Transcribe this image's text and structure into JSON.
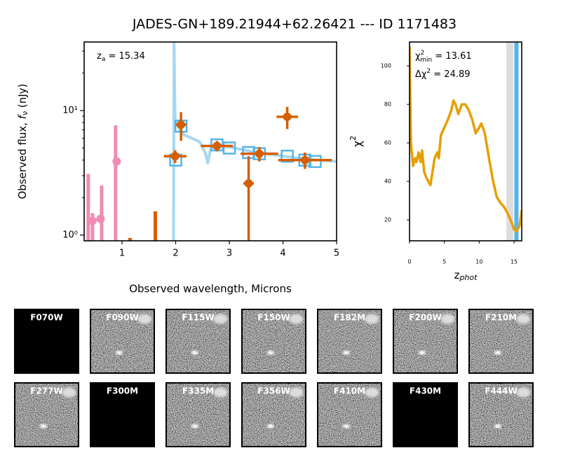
{
  "title": "JADES-GN+189.21944+62.26421 --- ID 1171483",
  "chart_data": [
    {
      "type": "sed",
      "annotation": [
        "z",
        "a",
        " = 15.34"
      ],
      "xlabel": "Observed wavelength, Microns",
      "ylabel": [
        "Observed flux, ",
        "f",
        "ν",
        " (nJy)"
      ],
      "xlim": [
        0.294,
        5
      ],
      "xticks": [
        1,
        2,
        3,
        4,
        5
      ],
      "ylim": [
        0.9,
        35.5
      ],
      "log_y": true,
      "yticks": [
        {
          "value": 1,
          "label": "10⁰"
        },
        {
          "value": 10,
          "label": "10¹"
        }
      ],
      "yminor_ticks": [
        2,
        3,
        4,
        5,
        6,
        7,
        8,
        9,
        20,
        30
      ],
      "series": [
        {
          "kind": "line",
          "color": "#a6d8f0",
          "x": [
            1.96,
            1.97,
            1.99,
            2.05,
            2.15,
            2.3,
            2.45,
            2.55,
            2.6,
            2.65,
            2.75,
            2.9,
            3.1,
            3.4,
            3.7,
            4.0,
            4.4,
            5.0
          ],
          "values": [
            0.9,
            35.5,
            8.2,
            7.4,
            6.4,
            6.0,
            5.6,
            4.6,
            3.8,
            4.9,
            5.4,
            5.2,
            5.0,
            4.7,
            4.5,
            4.3,
            4.1,
            3.9
          ]
        },
        {
          "kind": "bar",
          "color": "#f08cb4",
          "x": [
            0.37,
            0.45,
            0.62,
            0.88
          ],
          "values": [
            3.1,
            1.5,
            2.5,
            7.6
          ]
        },
        {
          "kind": "point",
          "color": "#f08cb4",
          "x": [
            0.45,
            0.6,
            0.9
          ],
          "values": [
            1.3,
            1.35,
            3.9
          ]
        },
        {
          "kind": "bar",
          "color": "#d55e00",
          "x": [
            1.15,
            1.62
          ],
          "values": [
            0.95,
            1.55
          ]
        },
        {
          "kind": "square",
          "color": "#56b4e9",
          "x": [
            2.0,
            2.1,
            2.77,
            3.0,
            3.36,
            3.56,
            4.08,
            4.41,
            4.6
          ],
          "values": [
            4.0,
            7.5,
            5.3,
            5.0,
            4.6,
            4.5,
            4.3,
            4.0,
            3.9
          ]
        },
        {
          "kind": "errorbar",
          "color": "#d55e00",
          "x": [
            1.99,
            2.1,
            2.77,
            3.36,
            3.56,
            4.08,
            4.41
          ],
          "values": [
            4.3,
            7.7,
            5.2,
            2.6,
            4.5,
            8.9,
            4.0
          ],
          "xerr": [
            0.21,
            0.1,
            0.3,
            0.1,
            0.35,
            0.2,
            0.5
          ],
          "yerr": [
            0.5,
            2.0,
            0.5,
            1.7,
            0.6,
            1.8,
            0.6
          ]
        }
      ]
    },
    {
      "type": "line",
      "annotations": [
        [
          "χ",
          "2",
          "min",
          " = 13.61"
        ],
        [
          "Δχ",
          "2",
          " = 24.89"
        ]
      ],
      "xlabel": [
        "z",
        "phot"
      ],
      "ylabel": [
        "χ",
        "2"
      ],
      "xlim": [
        0,
        16.1
      ],
      "xticks": [
        0,
        5,
        10,
        15
      ],
      "ylim": [
        9.1,
        112.4
      ],
      "yticks": [
        20,
        40,
        60,
        80,
        100
      ],
      "band": [
        13.9,
        14.9
      ],
      "band_color": "#dddddd",
      "z_best": 15.34,
      "z_best_color": "#56b4e9",
      "color": "#e69f00",
      "x": [
        0,
        0.2,
        0.5,
        0.8,
        1.0,
        1.3,
        1.6,
        1.8,
        2.1,
        2.4,
        2.7,
        3.0,
        3.3,
        3.6,
        4.0,
        4.2,
        4.5,
        5.0,
        5.5,
        6.0,
        6.3,
        6.6,
        7.0,
        7.5,
        8.0,
        8.5,
        9.0,
        9.5,
        10.0,
        10.3,
        10.8,
        11.5,
        12.0,
        12.5,
        13.0,
        13.5,
        14.0,
        14.5,
        15.0,
        15.34,
        15.8,
        16.1
      ],
      "values": [
        110,
        60,
        48,
        52,
        50,
        55,
        50,
        56,
        45,
        42,
        40,
        38,
        45,
        52,
        55,
        52,
        64,
        68,
        72,
        77,
        82,
        80,
        75,
        80,
        80,
        77,
        72,
        65,
        68,
        70,
        65,
        50,
        40,
        32,
        29,
        27,
        24,
        20,
        15,
        14,
        17,
        25
      ]
    }
  ],
  "cutouts": [
    {
      "filter": "F070W",
      "has_data": false
    },
    {
      "filter": "F090W",
      "has_data": true
    },
    {
      "filter": "F115W",
      "has_data": true
    },
    {
      "filter": "F150W",
      "has_data": true
    },
    {
      "filter": "F182M",
      "has_data": true
    },
    {
      "filter": "F200W",
      "has_data": true
    },
    {
      "filter": "F210M",
      "has_data": true
    },
    {
      "filter": "F277W",
      "has_data": true
    },
    {
      "filter": "F300M",
      "has_data": false
    },
    {
      "filter": "F335M",
      "has_data": true
    },
    {
      "filter": "F356W",
      "has_data": true
    },
    {
      "filter": "F410M",
      "has_data": true
    },
    {
      "filter": "F430M",
      "has_data": false
    },
    {
      "filter": "F444W",
      "has_data": true
    }
  ]
}
